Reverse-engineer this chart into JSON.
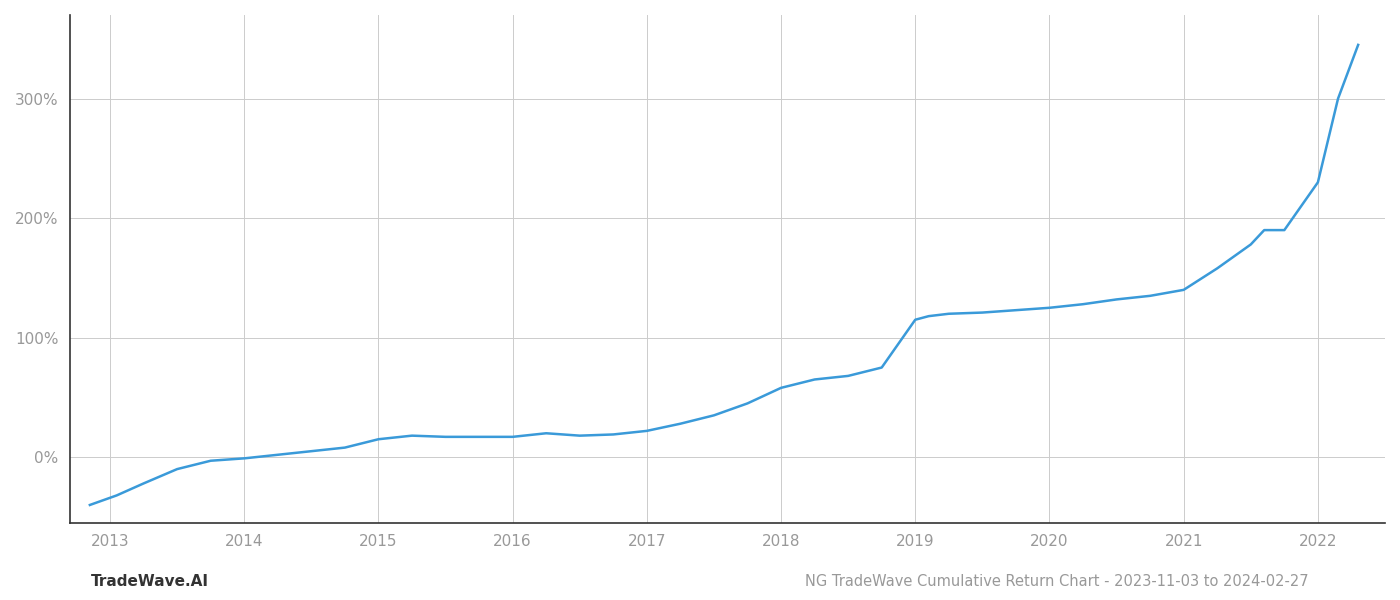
{
  "title": "NG TradeWave Cumulative Return Chart - 2023-11-03 to 2024-02-27",
  "watermark": "TradeWave.AI",
  "line_color": "#3a9ad9",
  "background_color": "#ffffff",
  "grid_color": "#cccccc",
  "x_years": [
    2013,
    2014,
    2015,
    2016,
    2017,
    2018,
    2019,
    2020,
    2021,
    2022
  ],
  "x_data": [
    2012.85,
    2013.05,
    2013.25,
    2013.5,
    2013.75,
    2014.0,
    2014.25,
    2014.5,
    2014.75,
    2015.0,
    2015.25,
    2015.5,
    2015.75,
    2016.0,
    2016.25,
    2016.5,
    2016.75,
    2017.0,
    2017.25,
    2017.5,
    2017.75,
    2018.0,
    2018.25,
    2018.5,
    2018.75,
    2019.0,
    2019.1,
    2019.25,
    2019.5,
    2019.75,
    2020.0,
    2020.25,
    2020.5,
    2020.75,
    2021.0,
    2021.25,
    2021.5,
    2021.6,
    2021.75,
    2022.0,
    2022.15,
    2022.3
  ],
  "y_data": [
    -40,
    -32,
    -22,
    -10,
    -3,
    -1,
    2,
    5,
    8,
    15,
    18,
    17,
    17,
    17,
    20,
    18,
    19,
    22,
    28,
    35,
    45,
    58,
    65,
    68,
    75,
    115,
    118,
    120,
    121,
    123,
    125,
    128,
    132,
    135,
    140,
    158,
    178,
    190,
    190,
    230,
    300,
    345
  ],
  "yticks": [
    0,
    100,
    200,
    300
  ],
  "ytick_labels": [
    "0%",
    "100%",
    "200%",
    "300%"
  ],
  "ylim": [
    -55,
    370
  ],
  "xlim": [
    2012.7,
    2022.5
  ],
  "line_width": 1.8,
  "title_fontsize": 10.5,
  "watermark_fontsize": 11,
  "tick_fontsize": 11,
  "tick_color": "#999999",
  "left_spine_color": "#333333",
  "bottom_spine_color": "#333333",
  "title_color": "#999999",
  "watermark_color": "#333333"
}
